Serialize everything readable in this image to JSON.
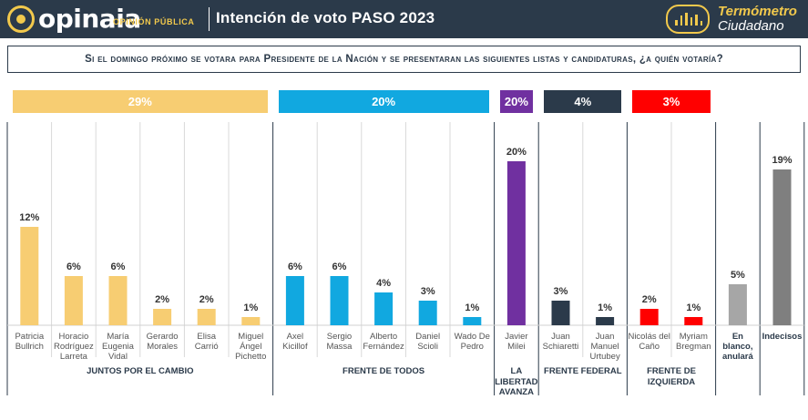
{
  "header": {
    "brand": "opinaia",
    "brand_sub": "OPINIÓN PÚBLICA",
    "title": "Intención de voto PASO 2023",
    "termometro_line1": "Termómetro",
    "termometro_line2": "Ciudadano",
    "bg_color": "#2b3a4a",
    "accent_color": "#f2c94c",
    "icons": [
      "opinaia-logo-icon",
      "termometro-icon"
    ]
  },
  "question": "Si el domingo próximo se votara para Presidente de la Nación y se presentaran las siguientes listas y candidaturas, ¿a quién votaría?",
  "chart_data": {
    "type": "bar",
    "categories": [
      "Patricia Bullrich",
      "Horacio Rodríguez Larreta",
      "María Eugenia Vidal",
      "Gerardo Morales",
      "Elisa Carrió",
      "Miguel Ángel Pichetto",
      "Axel Kicillof",
      "Sergio Massa",
      "Alberto Fernández",
      "Daniel Scioli",
      "Wado De Pedro",
      "Javier Milei",
      "Juan Schiaretti",
      "Juan Manuel Urtubey",
      "Nicolás del Caño",
      "Myriam Bregman",
      "En blanco, anulará",
      "Indecisos"
    ],
    "values": [
      12,
      6,
      6,
      2,
      2,
      1,
      6,
      6,
      4,
      3,
      1,
      20,
      3,
      1,
      2,
      1,
      5,
      19
    ],
    "value_labels": [
      "12%",
      "6%",
      "6%",
      "2%",
      "2%",
      "1%",
      "6%",
      "6%",
      "4%",
      "3%",
      "1%",
      "20%",
      "3%",
      "1%",
      "2%",
      "1%",
      "5%",
      "19%"
    ],
    "ylim": [
      0,
      20
    ],
    "grid": false,
    "coalitions": [
      {
        "name": "JUNTOS POR EL CAMBIO",
        "total": "29%",
        "color": "#f7cd72",
        "start": 0,
        "count": 6
      },
      {
        "name": "FRENTE DE TODOS",
        "total": "20%",
        "color": "#11a8e0",
        "start": 6,
        "count": 5
      },
      {
        "name": "LA LIBERTAD AVANZA",
        "total": "20%",
        "color": "#7030a0",
        "start": 11,
        "count": 1
      },
      {
        "name": "FRENTE FEDERAL",
        "total": "4%",
        "color": "#2b3a4a",
        "start": 12,
        "count": 2
      },
      {
        "name": "FRENTE DE IZQUIERDA",
        "total": "3%",
        "color": "#ff0000",
        "start": 14,
        "count": 2
      },
      {
        "name": "",
        "total": "",
        "color": "#a6a6a6",
        "start": 16,
        "count": 1
      },
      {
        "name": "",
        "total": "",
        "color": "#7f7f7f",
        "start": 17,
        "count": 1
      }
    ]
  }
}
